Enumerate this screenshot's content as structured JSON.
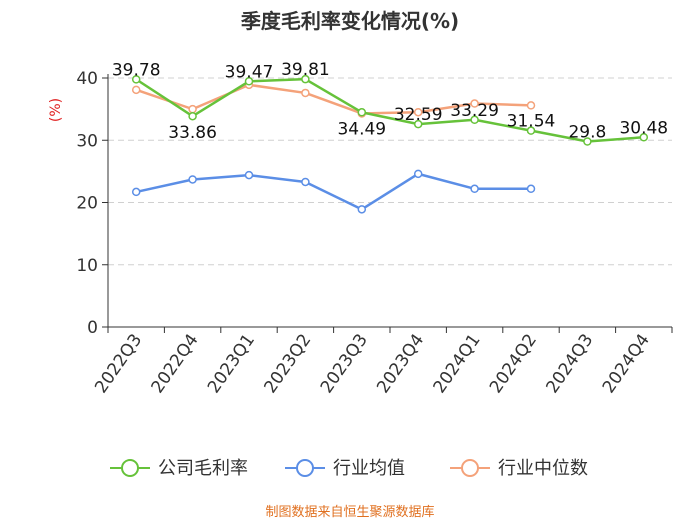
{
  "chart_data": {
    "type": "line",
    "title": "季度毛利率变化情况(%)",
    "ylabel": "(%)",
    "ylim": [
      0,
      40
    ],
    "yticks": [
      0,
      10,
      20,
      30,
      40
    ],
    "categories": [
      "2022Q3",
      "2022Q4",
      "2023Q1",
      "2023Q2",
      "2023Q3",
      "2023Q4",
      "2024Q1",
      "2024Q2",
      "2024Q3",
      "2024Q4"
    ],
    "grid": true,
    "legend_position": "bottom",
    "series": [
      {
        "name": "公司毛利率",
        "color": "#66c23a",
        "values": [
          39.78,
          33.86,
          39.47,
          39.81,
          34.49,
          32.59,
          33.29,
          31.54,
          29.8,
          30.48
        ],
        "labels": [
          "39.78",
          "33.86",
          "39.47",
          "39.81",
          "34.49",
          "32.59",
          "33.29",
          "31.54",
          "29.8",
          "30.48"
        ]
      },
      {
        "name": "行业均值",
        "color": "#5b8ee6",
        "values": [
          21.7,
          23.7,
          24.4,
          23.3,
          18.9,
          24.6,
          22.2,
          22.2,
          null,
          null
        ]
      },
      {
        "name": "行业中位数",
        "color": "#f4a27a",
        "values": [
          38.1,
          35.0,
          38.9,
          37.6,
          34.3,
          34.5,
          35.9,
          35.6,
          null,
          null
        ]
      }
    ]
  },
  "footer": {
    "source": "制图数据来自恒生聚源数据库"
  }
}
